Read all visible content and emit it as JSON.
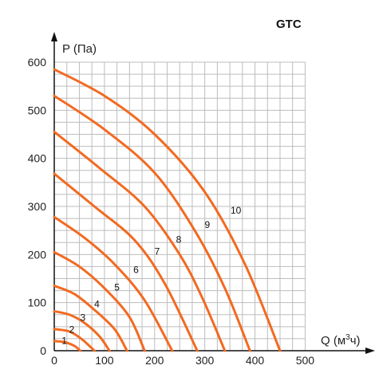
{
  "chart_data": {
    "type": "line",
    "title": "GTC",
    "ylabel": "P (Па)",
    "xlabel_prefix": "Q (м",
    "xlabel_sup": "3",
    "xlabel_suffix": "ч)",
    "xlim": [
      0,
      520
    ],
    "ylim": [
      0,
      600
    ],
    "x_ticks": [
      0,
      100,
      200,
      300,
      400,
      500
    ],
    "y_ticks": [
      0,
      100,
      200,
      300,
      400,
      500,
      600
    ],
    "grid": true,
    "line_color": "#f26a21",
    "series": [
      {
        "name": "1",
        "label_at": [
          20,
          14
        ],
        "points": [
          [
            0,
            20
          ],
          [
            20,
            18
          ],
          [
            40,
            10
          ],
          [
            52,
            0
          ]
        ]
      },
      {
        "name": "2",
        "label_at": [
          35,
          37
        ],
        "points": [
          [
            0,
            45
          ],
          [
            30,
            40
          ],
          [
            55,
            24
          ],
          [
            80,
            0
          ]
        ]
      },
      {
        "name": "3",
        "label_at": [
          57,
          62
        ],
        "points": [
          [
            0,
            82
          ],
          [
            30,
            75
          ],
          [
            60,
            58
          ],
          [
            90,
            30
          ],
          [
            110,
            0
          ]
        ]
      },
      {
        "name": "4",
        "label_at": [
          85,
          90
        ],
        "points": [
          [
            0,
            135
          ],
          [
            40,
            118
          ],
          [
            80,
            85
          ],
          [
            120,
            45
          ],
          [
            145,
            0
          ]
        ]
      },
      {
        "name": "5",
        "label_at": [
          125,
          125
        ],
        "points": [
          [
            0,
            205
          ],
          [
            50,
            175
          ],
          [
            100,
            130
          ],
          [
            150,
            70
          ],
          [
            180,
            0
          ]
        ]
      },
      {
        "name": "6",
        "label_at": [
          163,
          162
        ],
        "points": [
          [
            0,
            278
          ],
          [
            60,
            235
          ],
          [
            120,
            180
          ],
          [
            180,
            105
          ],
          [
            235,
            0
          ]
        ]
      },
      {
        "name": "7",
        "label_at": [
          205,
          200
        ],
        "points": [
          [
            0,
            368
          ],
          [
            80,
            300
          ],
          [
            160,
            230
          ],
          [
            220,
            140
          ],
          [
            285,
            0
          ]
        ]
      },
      {
        "name": "8",
        "label_at": [
          248,
          225
        ],
        "points": [
          [
            0,
            455
          ],
          [
            90,
            380
          ],
          [
            180,
            300
          ],
          [
            250,
            200
          ],
          [
            295,
            110
          ],
          [
            340,
            0
          ]
        ]
      },
      {
        "name": "9",
        "label_at": [
          305,
          255
        ],
        "points": [
          [
            0,
            530
          ],
          [
            100,
            460
          ],
          [
            200,
            370
          ],
          [
            280,
            250
          ],
          [
            340,
            130
          ],
          [
            390,
            0
          ]
        ]
      },
      {
        "name": "10",
        "label_at": [
          362,
          285
        ],
        "points": [
          [
            0,
            585
          ],
          [
            100,
            530
          ],
          [
            200,
            450
          ],
          [
            300,
            330
          ],
          [
            380,
            180
          ],
          [
            450,
            0
          ]
        ]
      }
    ],
    "x_extra_curve_note": ""
  }
}
